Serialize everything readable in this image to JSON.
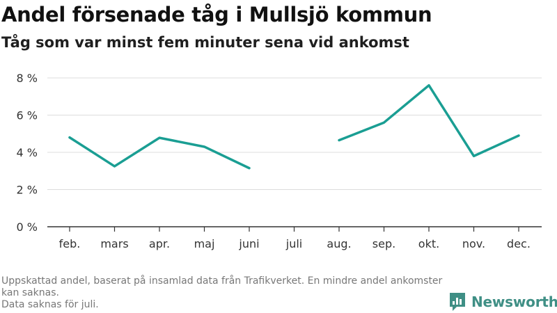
{
  "header": {
    "title": "Andel försenade tåg i Mullsjö kommun",
    "subtitle": "Tåg som var minst fem minuter sena vid ankomst"
  },
  "footer": {
    "line1": "Uppskattad andel, baserat på insamlad data från Trafikverket. En mindre andel ankomster kan saknas.",
    "line2": "Data saknas för juli."
  },
  "brand": {
    "name": "Newsworthy",
    "icon": "newsworthy-logo-icon"
  },
  "colors": {
    "line": "#1a9e93",
    "grid": "#dcdcdc",
    "axis": "#333333"
  },
  "chart_data": {
    "type": "line",
    "title": "Andel försenade tåg i Mullsjö kommun",
    "subtitle": "Tåg som var minst fem minuter sena vid ankomst",
    "categories": [
      "feb.",
      "mars",
      "apr.",
      "maj",
      "juni",
      "juli",
      "aug.",
      "sep.",
      "okt.",
      "nov.",
      "dec."
    ],
    "series": [
      {
        "values": [
          4.8,
          3.25,
          4.78,
          4.3,
          3.15,
          null,
          4.65,
          5.6,
          7.6,
          3.8,
          4.9
        ]
      }
    ],
    "yticks": [
      "0 %",
      "2 %",
      "4 %",
      "6 %",
      "8 %"
    ],
    "ytick_values": [
      0,
      2,
      4,
      6,
      8
    ],
    "ylim": [
      0,
      8
    ],
    "grid": true,
    "legend": "none"
  }
}
